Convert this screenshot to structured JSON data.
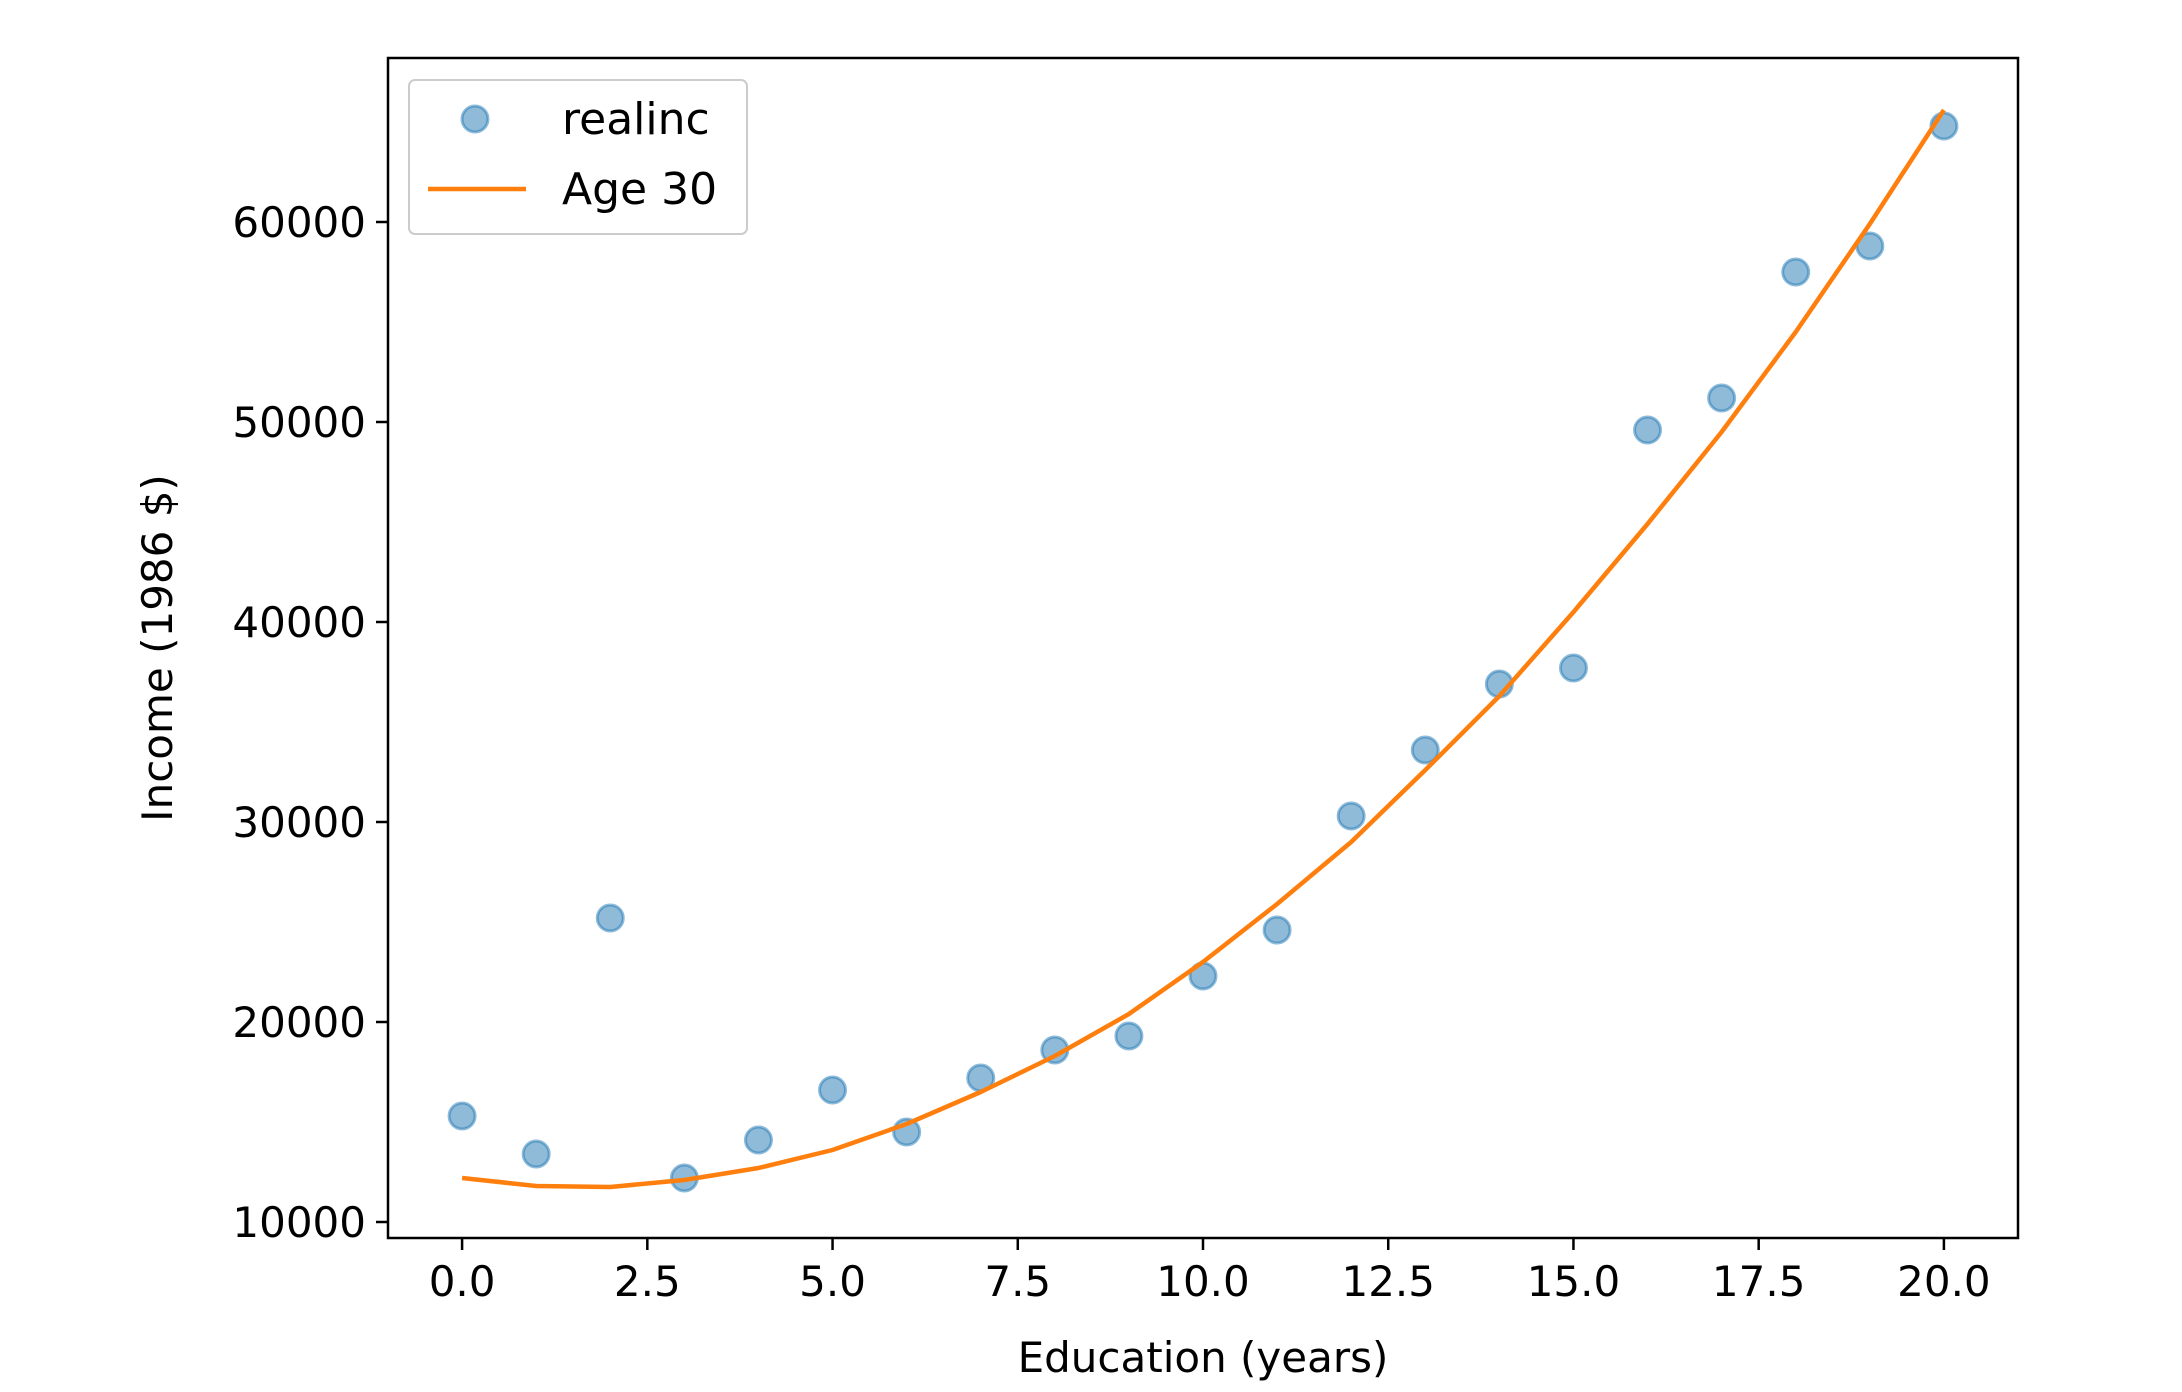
{
  "chart_data": {
    "type": "scatter",
    "title": "",
    "xlabel": "Education (years)",
    "ylabel": "Income (1986 $)",
    "xlim": [
      -1.0,
      21.0
    ],
    "ylim": [
      9200,
      68200
    ],
    "xticks": [
      0.0,
      2.5,
      5.0,
      7.5,
      10.0,
      12.5,
      15.0,
      17.5,
      20.0
    ],
    "xtick_labels": [
      "0.0",
      "2.5",
      "5.0",
      "7.5",
      "10.0",
      "12.5",
      "15.0",
      "17.5",
      "20.0"
    ],
    "yticks": [
      10000,
      20000,
      30000,
      40000,
      50000,
      60000
    ],
    "ytick_labels": [
      "10000",
      "20000",
      "30000",
      "40000",
      "50000",
      "60000"
    ],
    "grid": false,
    "legend_position": "top-left",
    "series": [
      {
        "name": "realinc",
        "kind": "markers",
        "color": "#1f77b4",
        "x": [
          0,
          1,
          2,
          3,
          4,
          5,
          6,
          7,
          8,
          9,
          10,
          11,
          12,
          13,
          14,
          15,
          16,
          17,
          18,
          19,
          20
        ],
        "y": [
          15300,
          13400,
          25200,
          12200,
          14100,
          16600,
          14500,
          17200,
          18600,
          19300,
          22300,
          24600,
          30300,
          33600,
          36900,
          37700,
          49600,
          51200,
          57500,
          58800,
          64800
        ]
      },
      {
        "name": "Age 30",
        "kind": "line",
        "color": "#ff7f0e",
        "x": [
          0,
          1,
          2,
          3,
          4,
          5,
          6,
          7,
          8,
          9,
          10,
          11,
          12,
          13,
          14,
          15,
          16,
          17,
          18,
          19,
          20
        ],
        "y": [
          12200,
          11800,
          11750,
          12100,
          12700,
          13600,
          14900,
          16500,
          18300,
          20400,
          23000,
          25900,
          29000,
          32600,
          36300,
          40500,
          44900,
          49500,
          54500,
          59900,
          65600
        ]
      }
    ]
  }
}
